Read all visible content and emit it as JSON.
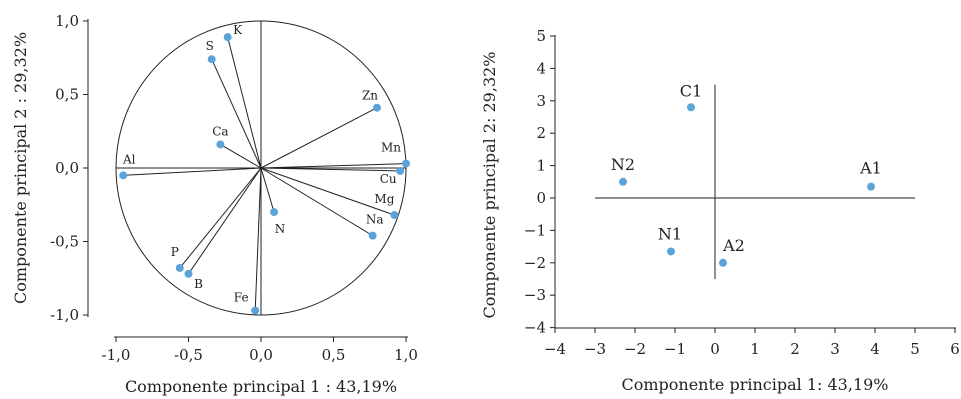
{
  "colors": {
    "point": "#5BA3D9",
    "line": "#222222"
  },
  "chart_data": [
    {
      "type": "scatter",
      "subtype": "loading-plot",
      "xlabel": "Componente principal 1 : 43,19%",
      "ylabel": "Componente principal 2 : 29,32%",
      "xlim": [
        -1.0,
        1.0
      ],
      "ylim": [
        -1.0,
        1.0
      ],
      "xticks": [
        -1.0,
        -0.5,
        0.0,
        0.5,
        1.0
      ],
      "yticks": [
        -1.0,
        -0.5,
        0.0,
        0.5,
        1.0
      ],
      "xtick_labels": [
        "-1,0",
        "-0,5",
        "0,0",
        "0,5",
        "1,0"
      ],
      "ytick_labels": [
        "-1,0",
        "-0,5",
        "0,0",
        "0,5",
        "1,0"
      ],
      "unit_circle": true,
      "grid": false,
      "points": [
        {
          "label": "K",
          "x": -0.23,
          "y": 0.89
        },
        {
          "label": "S",
          "x": -0.34,
          "y": 0.74
        },
        {
          "label": "Zn",
          "x": 0.8,
          "y": 0.41
        },
        {
          "label": "Ca",
          "x": -0.28,
          "y": 0.16
        },
        {
          "label": "Al",
          "x": -0.95,
          "y": -0.05
        },
        {
          "label": "Mn",
          "x": 1.0,
          "y": 0.03
        },
        {
          "label": "Cu",
          "x": 0.96,
          "y": -0.02
        },
        {
          "label": "Mg",
          "x": 0.92,
          "y": -0.32
        },
        {
          "label": "Na",
          "x": 0.77,
          "y": -0.46
        },
        {
          "label": "N",
          "x": 0.09,
          "y": -0.3
        },
        {
          "label": "P",
          "x": -0.56,
          "y": -0.68
        },
        {
          "label": "B",
          "x": -0.5,
          "y": -0.72
        },
        {
          "label": "Fe",
          "x": -0.04,
          "y": -0.97
        }
      ]
    },
    {
      "type": "scatter",
      "subtype": "score-plot",
      "xlabel": "Componente principal 1: 43,19%",
      "ylabel": "Componente principal 2: 29,32%",
      "xlim": [
        -4,
        6
      ],
      "ylim": [
        -4,
        5
      ],
      "xticks": [
        -4,
        -3,
        -2,
        -1,
        0,
        1,
        2,
        3,
        4,
        5,
        6
      ],
      "yticks": [
        -4,
        -3,
        -2,
        -1,
        0,
        1,
        2,
        3,
        4,
        5
      ],
      "xtick_labels": [
        "−4",
        "−3",
        "−2",
        "−1",
        "0",
        "1",
        "2",
        "3",
        "4",
        "5",
        "6"
      ],
      "ytick_labels": [
        "−4",
        "−3",
        "−2",
        "−1",
        "0",
        "1",
        "2",
        "3",
        "4",
        "5"
      ],
      "grid": false,
      "points": [
        {
          "label": "C1",
          "x": -0.6,
          "y": 2.8
        },
        {
          "label": "N2",
          "x": -2.3,
          "y": 0.5
        },
        {
          "label": "A1",
          "x": 3.9,
          "y": 0.35
        },
        {
          "label": "N1",
          "x": -1.1,
          "y": -1.65
        },
        {
          "label": "A2",
          "x": 0.2,
          "y": -2.0
        }
      ]
    }
  ]
}
